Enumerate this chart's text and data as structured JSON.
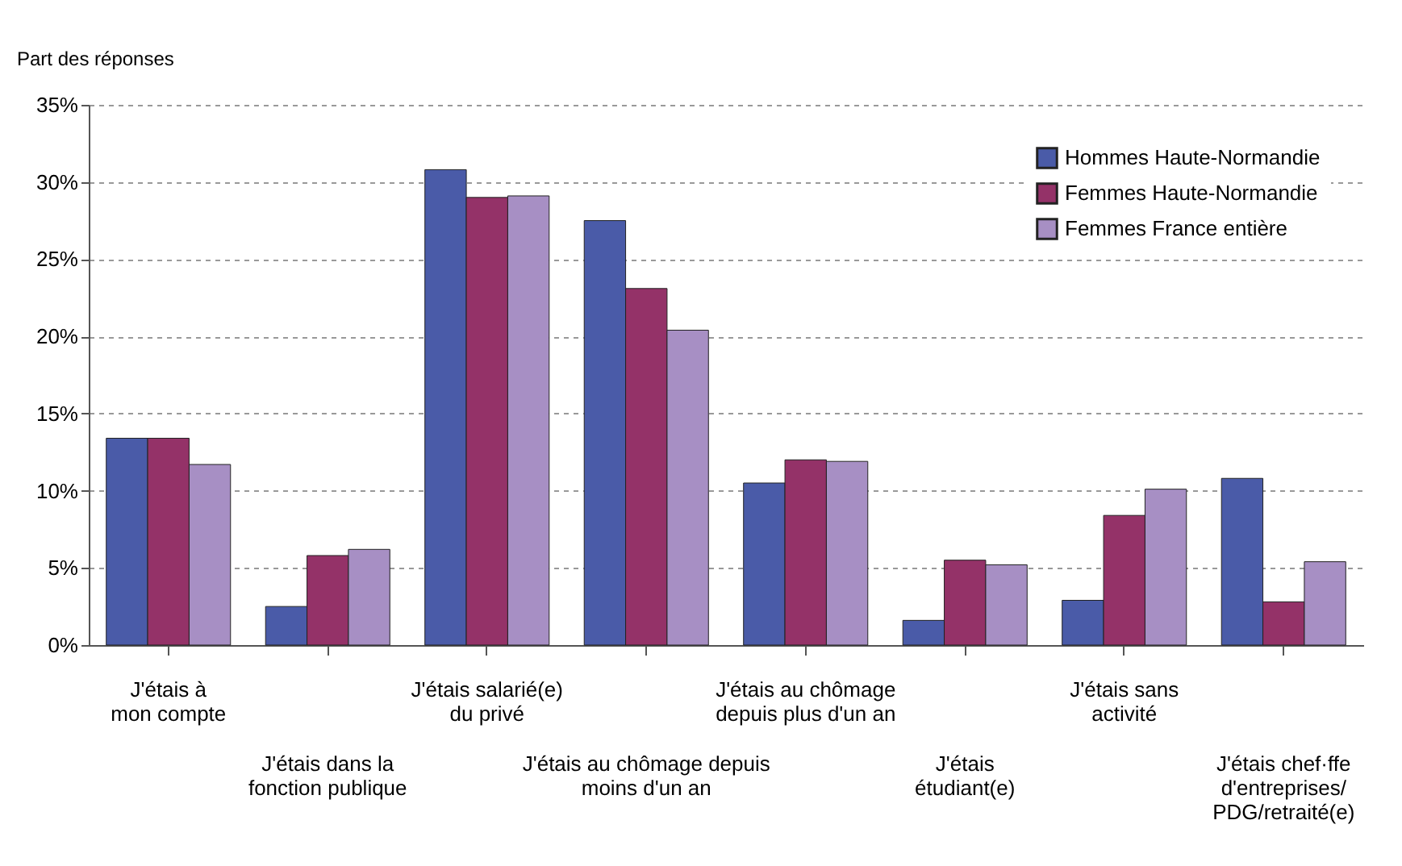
{
  "chart_data": {
    "type": "bar",
    "ylabel": "Part des réponses",
    "categories": [
      "J'étais à\nmon compte",
      "J'étais dans la\nfonction publique",
      "J'étais salarié(e)\ndu privé",
      "J'étais au chômage depuis\nmoins d'un an",
      "J'étais au chômage\ndepuis plus d'un an",
      "J'étais\nétudiant(e)",
      "J'étais sans\nactivité",
      "J'étais chef·ffe\nd'entreprises/\nPDG/retraité(e)"
    ],
    "series": [
      {
        "name": "Hommes Haute-Normandie",
        "color": "#4a5ba8",
        "values": [
          13.4,
          2.5,
          30.8,
          27.5,
          10.5,
          1.6,
          2.9,
          10.8
        ]
      },
      {
        "name": "Femmes Haute-Normandie",
        "color": "#943268",
        "values": [
          13.4,
          5.8,
          29.0,
          23.1,
          12.0,
          5.5,
          8.4,
          2.8
        ]
      },
      {
        "name": "Femmes France entière",
        "color": "#a78fc4",
        "values": [
          11.7,
          6.2,
          29.1,
          20.4,
          11.9,
          5.2,
          10.1,
          5.4
        ]
      }
    ],
    "ylim": [
      0,
      35
    ],
    "yticks": [
      {
        "value": 0,
        "label": "0%"
      },
      {
        "value": 5,
        "label": "5%"
      },
      {
        "value": 10,
        "label": "10%"
      },
      {
        "value": 15,
        "label": "15%"
      },
      {
        "value": 20,
        "label": "20%"
      },
      {
        "value": 25,
        "label": "25%"
      },
      {
        "value": 30,
        "label": "30%"
      },
      {
        "value": 35,
        "label": "35%"
      }
    ],
    "grid": "y",
    "legend": "top right"
  }
}
